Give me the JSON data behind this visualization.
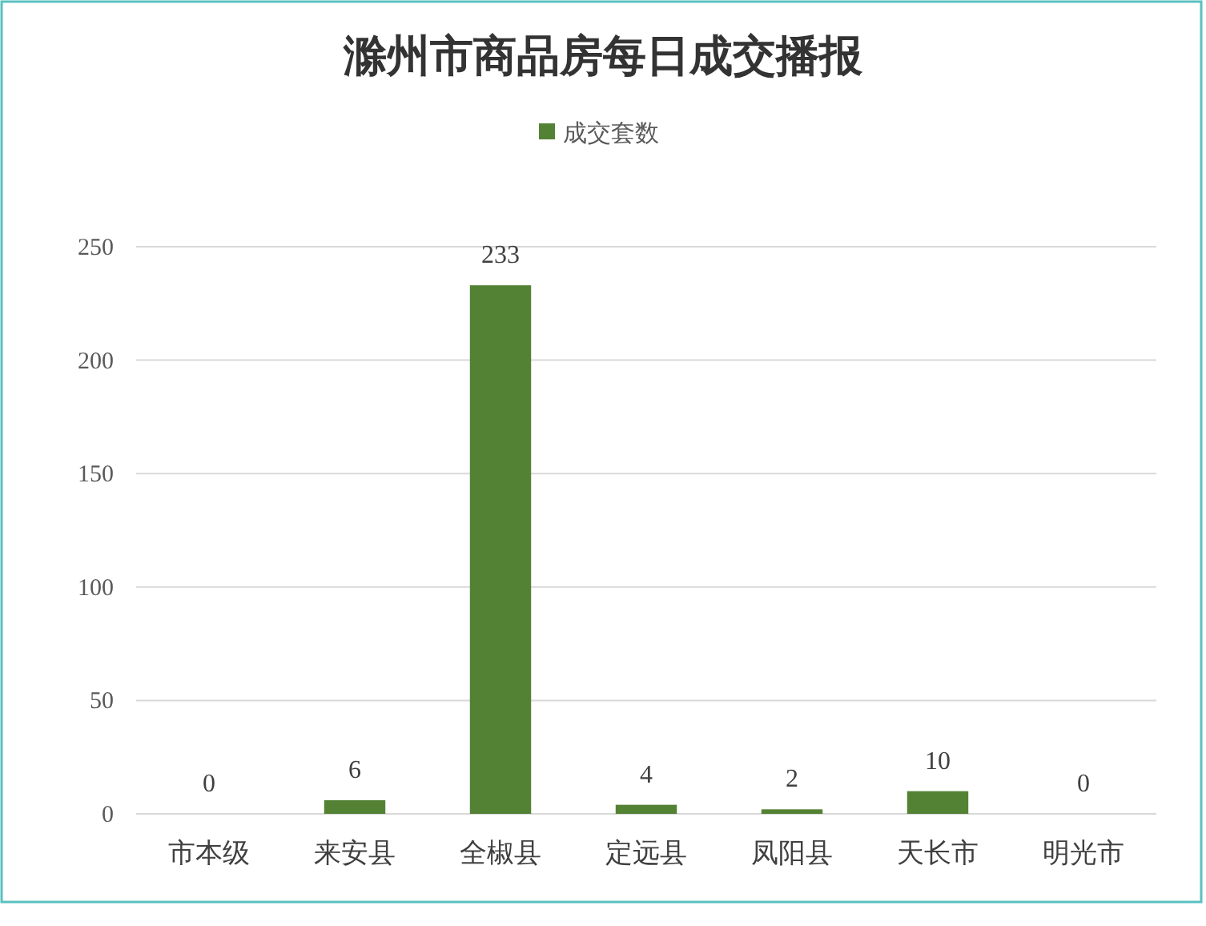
{
  "chart_data": {
    "type": "bar",
    "title": "滁州市商品房每日成交播报",
    "categories": [
      "市本级",
      "来安县",
      "全椒县",
      "定远县",
      "凤阳县",
      "天长市",
      "明光市"
    ],
    "series": [
      {
        "name": "成交套数",
        "color": "#548235",
        "values": [
          0,
          6,
          233,
          4,
          2,
          10,
          0
        ]
      }
    ],
    "ylim": [
      0,
      250
    ],
    "yticks": [
      0,
      50,
      100,
      150,
      200,
      250
    ],
    "grid": "y",
    "legend": "top",
    "data_labels": true
  }
}
